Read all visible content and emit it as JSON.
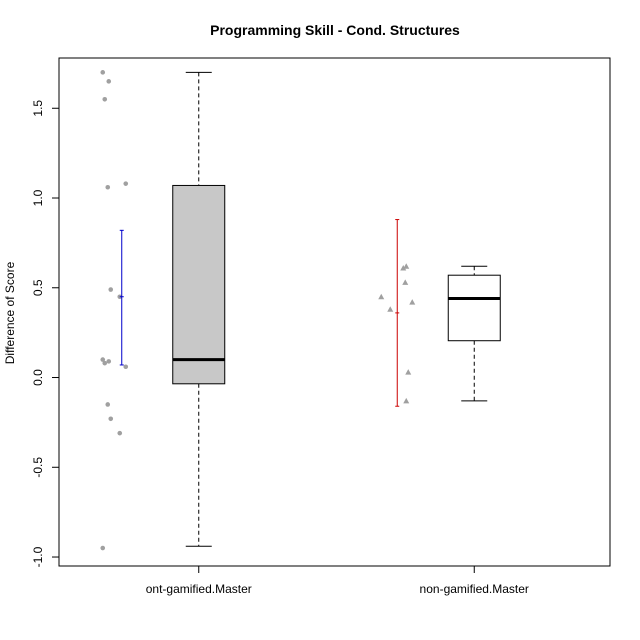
{
  "chart_data": {
    "type": "box",
    "title": "Programming Skill - Cond. Structures",
    "xlabel": "",
    "ylabel": "Difference of Score",
    "ylim": [
      -1.05,
      1.78
    ],
    "yticks": [
      -1.0,
      -0.5,
      0.0,
      0.5,
      1.0,
      1.5
    ],
    "ytick_labels": [
      "-1.0",
      "-0.5",
      "0.0",
      "0.5",
      "1.0",
      "1.5"
    ],
    "categories": [
      "ont-gamified.Master",
      "non-gamified.Master"
    ],
    "groups": [
      {
        "name": "ont-gamified.Master",
        "box_fill": "#c8c8c8",
        "point_shape": "circle",
        "point_color": "#a0a0a0",
        "whisker_low": -0.94,
        "q1": -0.035,
        "median": 0.1,
        "q3": 1.07,
        "whisker_high": 1.7,
        "mean": 0.45,
        "ci_low": 0.07,
        "ci_high": 0.82,
        "ci_color": "#0000cc",
        "points": [
          1.7,
          1.65,
          1.55,
          1.08,
          1.06,
          0.49,
          0.45,
          0.1,
          0.09,
          0.08,
          0.06,
          -0.15,
          -0.23,
          -0.31,
          -0.95
        ]
      },
      {
        "name": "non-gamified.Master",
        "box_fill": "#ffffff",
        "point_shape": "triangle",
        "point_color": "#a0a0a0",
        "whisker_low": -0.13,
        "q1": 0.205,
        "median": 0.44,
        "q3": 0.57,
        "whisker_high": 0.62,
        "mean": 0.36,
        "ci_low": -0.16,
        "ci_high": 0.88,
        "ci_color": "#cc0000",
        "points": [
          0.62,
          0.61,
          0.53,
          0.45,
          0.42,
          0.38,
          0.03,
          -0.13
        ]
      }
    ],
    "grid": false,
    "legend": "none"
  }
}
